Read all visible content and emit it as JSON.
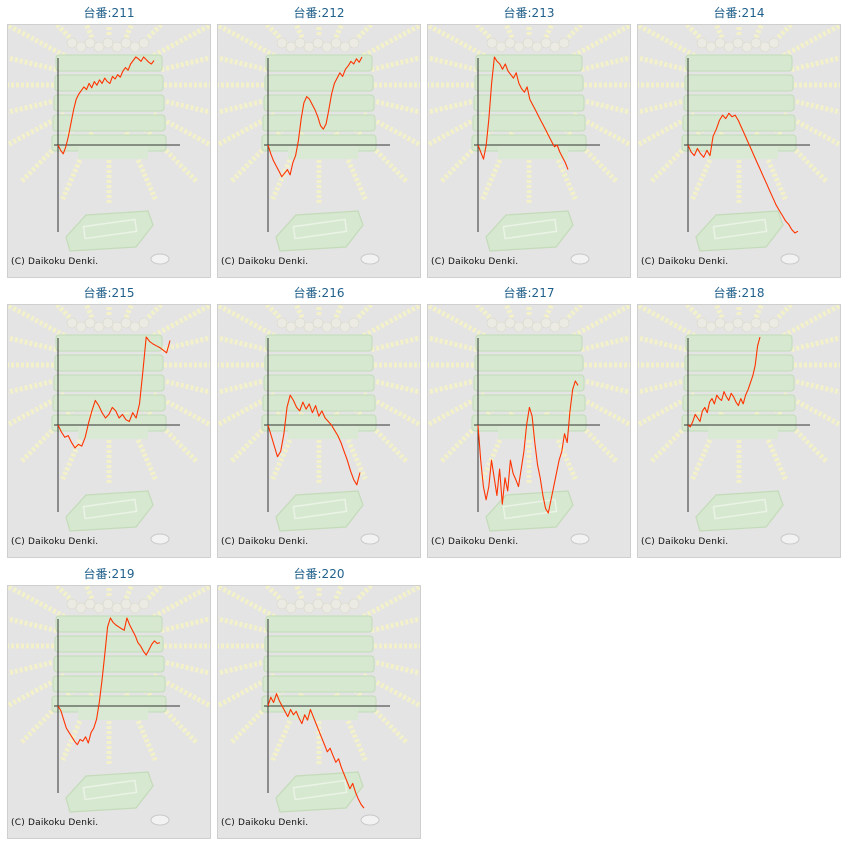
{
  "colors": {
    "line": "#ff3300",
    "axis": "#333333",
    "title": "#1f5f8b",
    "background": "#e4e4e4"
  },
  "credit": "(C) Daikoku Denki.",
  "chart_data": [
    {
      "type": "line",
      "title": "台番:211",
      "y": [
        0,
        -6,
        -10,
        -2,
        10,
        25,
        40,
        52,
        58,
        62,
        66,
        63,
        70,
        65,
        72,
        68,
        74,
        70,
        76,
        72,
        70,
        78,
        75,
        80,
        77,
        84,
        88,
        85,
        92,
        96,
        100,
        98,
        95,
        100,
        97,
        94,
        92,
        96
      ]
    },
    {
      "type": "line",
      "title": "台番:212",
      "y": [
        0,
        -10,
        -18,
        -24,
        -30,
        -36,
        -32,
        -28,
        -34,
        -20,
        -12,
        5,
        30,
        48,
        55,
        52,
        46,
        40,
        32,
        22,
        18,
        24,
        40,
        58,
        70,
        76,
        82,
        78,
        86,
        90,
        95,
        92,
        98,
        94,
        100
      ]
    },
    {
      "type": "line",
      "title": "台番:213",
      "y": [
        0,
        -8,
        -16,
        0,
        30,
        70,
        100,
        95,
        92,
        86,
        92,
        84,
        80,
        76,
        82,
        70,
        64,
        60,
        66,
        52,
        46,
        40,
        34,
        28,
        22,
        16,
        10,
        4,
        -2,
        0,
        -8,
        -14,
        -20,
        -28
      ]
    },
    {
      "type": "line",
      "title": "台番:214",
      "y": [
        0,
        -8,
        -12,
        -4,
        -10,
        -14,
        -6,
        -12,
        10,
        18,
        28,
        34,
        30,
        36,
        32,
        34,
        28,
        20,
        12,
        4,
        -4,
        -12,
        -20,
        -28,
        -36,
        -44,
        -52,
        -60,
        -68,
        -74,
        -80,
        -86,
        -90,
        -96,
        -100,
        -98
      ]
    },
    {
      "type": "line",
      "title": "台番:215",
      "y": [
        0,
        -8,
        -14,
        -12,
        -20,
        -26,
        -22,
        -24,
        -14,
        2,
        16,
        28,
        22,
        14,
        8,
        12,
        20,
        16,
        8,
        12,
        6,
        4,
        14,
        8,
        24,
        60,
        100,
        95,
        92,
        90,
        88,
        85,
        82,
        96
      ]
    },
    {
      "type": "line",
      "title": "台番:216",
      "y": [
        0,
        -12,
        -24,
        -36,
        -30,
        -10,
        20,
        34,
        28,
        20,
        16,
        26,
        18,
        24,
        14,
        22,
        10,
        16,
        8,
        4,
        0,
        -6,
        -12,
        -20,
        -30,
        -40,
        -52,
        -62,
        -68,
        -54
      ]
    },
    {
      "type": "line",
      "title": "台番:217",
      "y": [
        0,
        -40,
        -70,
        -85,
        -70,
        -40,
        -60,
        -80,
        -50,
        -90,
        -60,
        -75,
        -40,
        -55,
        -62,
        -70,
        -50,
        -30,
        0,
        20,
        10,
        -20,
        -45,
        -60,
        -80,
        -95,
        -100,
        -85,
        -70,
        -55,
        -40,
        -30,
        -10,
        -20,
        15,
        40,
        50,
        45
      ]
    },
    {
      "type": "line",
      "title": "台番:218",
      "y": [
        0,
        -2,
        4,
        12,
        8,
        4,
        16,
        20,
        14,
        26,
        30,
        24,
        34,
        30,
        28,
        38,
        32,
        28,
        36,
        32,
        26,
        22,
        30,
        24,
        34,
        40,
        48,
        56,
        68,
        90,
        100
      ]
    },
    {
      "type": "line",
      "title": "台番:219",
      "y": [
        0,
        -5,
        -15,
        -25,
        -30,
        -35,
        -40,
        -44,
        -38,
        -40,
        -35,
        -42,
        -30,
        -25,
        -15,
        5,
        30,
        60,
        90,
        100,
        95,
        92,
        90,
        88,
        86,
        100,
        92,
        86,
        80,
        72,
        68,
        62,
        58,
        64,
        70,
        74,
        71,
        72
      ]
    },
    {
      "type": "line",
      "title": "台番:220",
      "y": [
        0,
        10,
        4,
        14,
        6,
        0,
        -6,
        -12,
        -4,
        -10,
        -6,
        -14,
        -20,
        -10,
        -16,
        -4,
        -12,
        -20,
        -28,
        -36,
        -44,
        -52,
        -48,
        -56,
        -64,
        -60,
        -70,
        -78,
        -86,
        -94,
        -88,
        -98,
        -106,
        -112,
        -116
      ]
    }
  ]
}
